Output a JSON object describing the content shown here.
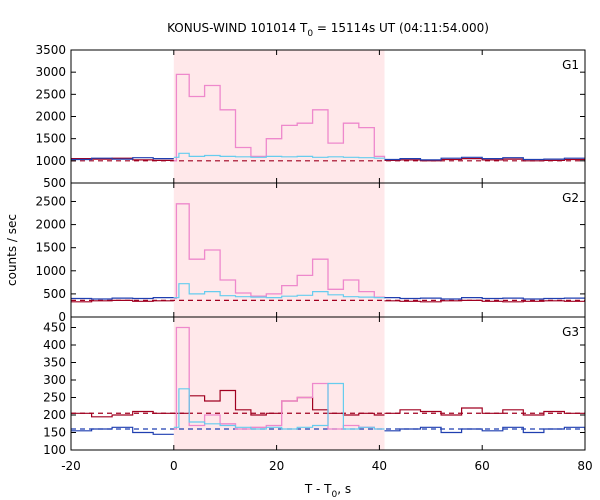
{
  "chart_data": {
    "type": "line",
    "title_prefix": "KONUS-WIND 101014 T",
    "title_sub": "0",
    "title_suffix": " = 15114s UT (04:11:54.000)",
    "xlabel_prefix": "T - T",
    "xlabel_sub": "0",
    "xlabel_suffix": ", s",
    "ylabel": "counts / sec",
    "xlim": [
      -20,
      80
    ],
    "xticks": [
      "-20",
      "0",
      "20",
      "40",
      "60",
      "80"
    ],
    "highlight_region": [
      0,
      41
    ],
    "colors": {
      "burst": "#ee88cc",
      "background_red": "#a00020",
      "background_blue": "#1f3fb0",
      "burst_cyan": "#66ccee",
      "highlight": "#ffe8ea",
      "bg_level": "#a00020"
    },
    "panels": [
      {
        "name": "G1",
        "ylim": [
          500,
          3500
        ],
        "yticks": [
          "500",
          "1000",
          "1500",
          "2000",
          "2500",
          "3000",
          "3500"
        ],
        "bg_level": 1000,
        "bg_red_x": [
          -20,
          -16,
          -12,
          -8,
          -4,
          0
        ],
        "bg_red_y": [
          1050,
          1040,
          1060,
          1020,
          1010
        ],
        "bg_blue_x": [
          -20,
          -16,
          -12,
          -8,
          -4,
          0
        ],
        "bg_blue_y": [
          1030,
          1060,
          1040,
          1070,
          1050
        ],
        "burst_x": [
          0,
          0.5,
          1,
          3,
          6,
          9,
          12,
          15,
          18,
          21,
          24,
          27,
          30,
          33,
          36,
          39,
          41
        ],
        "burst_y": [
          1000,
          2950,
          2950,
          2450,
          2700,
          2150,
          1300,
          1100,
          1500,
          1800,
          1850,
          2150,
          1400,
          1850,
          1750,
          1100,
          1050
        ],
        "cyan_x": [
          0,
          1,
          3,
          6,
          9,
          12,
          15,
          18,
          21,
          24,
          27,
          30,
          33,
          36,
          39,
          41
        ],
        "cyan_y": [
          1080,
          1170,
          1100,
          1120,
          1100,
          1090,
          1080,
          1100,
          1090,
          1100,
          1080,
          1090,
          1080,
          1070,
          1060,
          1050
        ],
        "post_x": [
          41,
          44,
          48,
          52,
          56,
          60,
          64,
          68,
          72,
          76,
          80
        ],
        "post_blue_y": [
          1030,
          1050,
          1020,
          1060,
          1080,
          1050,
          1070,
          1030,
          1040,
          1060
        ],
        "post_red_y": [
          1010,
          1020,
          1000,
          1030,
          1050,
          1020,
          1040,
          1000,
          1010,
          1030
        ]
      },
      {
        "name": "G2",
        "ylim": [
          0,
          2900
        ],
        "yticks": [
          "0",
          "500",
          "1000",
          "1500",
          "2000",
          "2500"
        ],
        "bg_level": 360,
        "bg_red_x": [
          -20,
          -16,
          -12,
          -8,
          -4,
          0
        ],
        "bg_red_y": [
          330,
          350,
          360,
          340,
          350
        ],
        "bg_blue_x": [
          -20,
          -16,
          -12,
          -8,
          -4,
          0
        ],
        "bg_blue_y": [
          400,
          390,
          410,
          400,
          420
        ],
        "burst_x": [
          0,
          0.5,
          1,
          3,
          6,
          9,
          12,
          15,
          18,
          21,
          24,
          27,
          30,
          33,
          36,
          39,
          41
        ],
        "burst_y": [
          400,
          2450,
          2450,
          1250,
          1450,
          800,
          520,
          450,
          500,
          680,
          900,
          1250,
          600,
          800,
          550,
          430,
          400
        ],
        "cyan_x": [
          0,
          1,
          3,
          6,
          9,
          12,
          15,
          18,
          21,
          24,
          27,
          30,
          33,
          36,
          39,
          41
        ],
        "cyan_y": [
          420,
          720,
          500,
          550,
          460,
          440,
          430,
          420,
          450,
          470,
          550,
          480,
          440,
          430,
          420,
          410
        ],
        "post_x": [
          41,
          44,
          48,
          52,
          56,
          60,
          64,
          68,
          72,
          76,
          80
        ],
        "post_blue_y": [
          420,
          400,
          410,
          390,
          420,
          400,
          410,
          390,
          400,
          410
        ],
        "post_red_y": [
          350,
          340,
          330,
          350,
          360,
          340,
          330,
          340,
          350,
          340
        ]
      },
      {
        "name": "G3",
        "ylim": [
          100,
          480
        ],
        "yticks": [
          "100",
          "150",
          "200",
          "250",
          "300",
          "350",
          "400",
          "450"
        ],
        "bg_level": 205,
        "bg_level2": 160,
        "bg_red_x": [
          -20,
          -16,
          -12,
          -8,
          -4,
          0
        ],
        "bg_red_y": [
          205,
          195,
          200,
          210,
          205
        ],
        "bg_blue_x": [
          -20,
          -16,
          -12,
          -8,
          -4,
          0
        ],
        "bg_blue_y": [
          155,
          160,
          165,
          150,
          145
        ],
        "burst_x": [
          0,
          0.5,
          1,
          3,
          6,
          9,
          12,
          15,
          18,
          21,
          24,
          27,
          30,
          33,
          36,
          39,
          41
        ],
        "burst_y": [
          160,
          450,
          450,
          170,
          200,
          175,
          160,
          165,
          170,
          240,
          250,
          290,
          160,
          170,
          165,
          160,
          160
        ],
        "cyan_x": [
          0,
          1,
          3,
          6,
          9,
          12,
          15,
          18,
          21,
          24,
          27,
          30,
          33,
          36,
          39,
          41
        ],
        "cyan_y": [
          165,
          275,
          180,
          175,
          170,
          165,
          160,
          165,
          160,
          165,
          170,
          290,
          160,
          165,
          160,
          160
        ],
        "red_burst_x": [
          0,
          3,
          6,
          9,
          12,
          15,
          18,
          21,
          24,
          27,
          30,
          33,
          36,
          39,
          41
        ],
        "red_burst_y": [
          205,
          255,
          240,
          270,
          215,
          200,
          205,
          240,
          250,
          215,
          205,
          200,
          205,
          200
        ],
        "post_x": [
          41,
          44,
          48,
          52,
          56,
          60,
          64,
          68,
          72,
          76,
          80
        ],
        "post_blue_y": [
          155,
          160,
          165,
          150,
          160,
          155,
          165,
          150,
          160,
          165
        ],
        "post_red_y": [
          205,
          215,
          210,
          200,
          220,
          205,
          215,
          200,
          210,
          205
        ]
      }
    ]
  }
}
